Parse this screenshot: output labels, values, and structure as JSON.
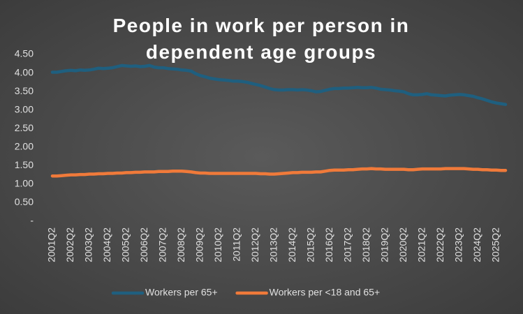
{
  "chart_data": {
    "type": "line",
    "title": "People in work per person in dependent age groups",
    "categories": [
      "2001Q2",
      null,
      null,
      null,
      "2002Q2",
      null,
      null,
      null,
      "2003Q2",
      null,
      null,
      null,
      "2004Q2",
      null,
      null,
      null,
      "2005Q2",
      null,
      null,
      null,
      "2006Q2",
      null,
      null,
      null,
      "2007Q2",
      null,
      null,
      null,
      "2008Q2",
      null,
      null,
      null,
      "2009Q2",
      null,
      null,
      null,
      "2010Q2",
      null,
      null,
      null,
      "2011Q2",
      null,
      null,
      null,
      "2012Q2",
      null,
      null,
      null,
      "2013Q2",
      null,
      null,
      null,
      "2014Q2",
      null,
      null,
      null,
      "2015Q2",
      null,
      null,
      null,
      "2016Q2",
      null,
      null,
      null,
      "2017Q2",
      null,
      null,
      null,
      "2018Q2",
      null,
      null,
      null,
      "2019Q2",
      null,
      null,
      null,
      "2020Q2",
      null,
      null,
      null,
      "2021Q2",
      null,
      null,
      null,
      "2022Q2",
      null,
      null,
      null,
      "2023Q2",
      null,
      null,
      null,
      "2024Q2",
      null,
      null,
      null,
      "2025Q2",
      null,
      null
    ],
    "series": [
      {
        "name": "Workers per 65+",
        "color": "#1f5f7f",
        "values": [
          4.02,
          4.02,
          4.04,
          4.06,
          4.07,
          4.06,
          4.08,
          4.07,
          4.08,
          4.1,
          4.13,
          4.12,
          4.13,
          4.14,
          4.17,
          4.2,
          4.19,
          4.18,
          4.19,
          4.17,
          4.18,
          4.2,
          4.16,
          4.14,
          4.14,
          4.12,
          4.11,
          4.1,
          4.08,
          4.07,
          4.05,
          3.98,
          3.93,
          3.9,
          3.86,
          3.84,
          3.82,
          3.81,
          3.8,
          3.78,
          3.78,
          3.77,
          3.75,
          3.72,
          3.69,
          3.66,
          3.62,
          3.58,
          3.55,
          3.54,
          3.54,
          3.55,
          3.55,
          3.54,
          3.55,
          3.54,
          3.52,
          3.49,
          3.5,
          3.53,
          3.56,
          3.58,
          3.58,
          3.59,
          3.59,
          3.6,
          3.61,
          3.6,
          3.6,
          3.61,
          3.59,
          3.56,
          3.55,
          3.54,
          3.52,
          3.51,
          3.49,
          3.44,
          3.41,
          3.41,
          3.42,
          3.44,
          3.41,
          3.4,
          3.39,
          3.38,
          3.4,
          3.41,
          3.42,
          3.41,
          3.39,
          3.37,
          3.33,
          3.3,
          3.26,
          3.22,
          3.19,
          3.17,
          3.15
        ]
      },
      {
        "name": "Workers per <18 and 65+",
        "color": "#f07a3a",
        "values": [
          1.22,
          1.22,
          1.23,
          1.24,
          1.25,
          1.25,
          1.26,
          1.26,
          1.27,
          1.27,
          1.28,
          1.28,
          1.29,
          1.29,
          1.3,
          1.3,
          1.31,
          1.31,
          1.32,
          1.32,
          1.33,
          1.33,
          1.33,
          1.34,
          1.34,
          1.34,
          1.35,
          1.35,
          1.35,
          1.34,
          1.33,
          1.31,
          1.3,
          1.3,
          1.29,
          1.29,
          1.29,
          1.29,
          1.29,
          1.29,
          1.29,
          1.29,
          1.29,
          1.29,
          1.29,
          1.28,
          1.28,
          1.27,
          1.27,
          1.28,
          1.29,
          1.3,
          1.31,
          1.31,
          1.32,
          1.32,
          1.32,
          1.33,
          1.33,
          1.35,
          1.37,
          1.38,
          1.38,
          1.38,
          1.39,
          1.39,
          1.4,
          1.41,
          1.41,
          1.42,
          1.41,
          1.41,
          1.4,
          1.4,
          1.4,
          1.4,
          1.4,
          1.39,
          1.39,
          1.4,
          1.41,
          1.41,
          1.41,
          1.41,
          1.41,
          1.42,
          1.42,
          1.42,
          1.42,
          1.42,
          1.41,
          1.4,
          1.4,
          1.39,
          1.39,
          1.38,
          1.38,
          1.37,
          1.37
        ]
      }
    ],
    "ylim": [
      0,
      4.5
    ],
    "yticks": [
      {
        "value": 0,
        "label": "-"
      },
      {
        "value": 0.5,
        "label": "0.50"
      },
      {
        "value": 1,
        "label": "1.00"
      },
      {
        "value": 1.5,
        "label": "1.50"
      },
      {
        "value": 2,
        "label": "2.00"
      },
      {
        "value": 2.5,
        "label": "2.50"
      },
      {
        "value": 3,
        "label": "3.00"
      },
      {
        "value": 3.5,
        "label": "3.50"
      },
      {
        "value": 4,
        "label": "4.00"
      },
      {
        "value": 4.5,
        "label": "4.50"
      }
    ],
    "legend": "bottom"
  }
}
